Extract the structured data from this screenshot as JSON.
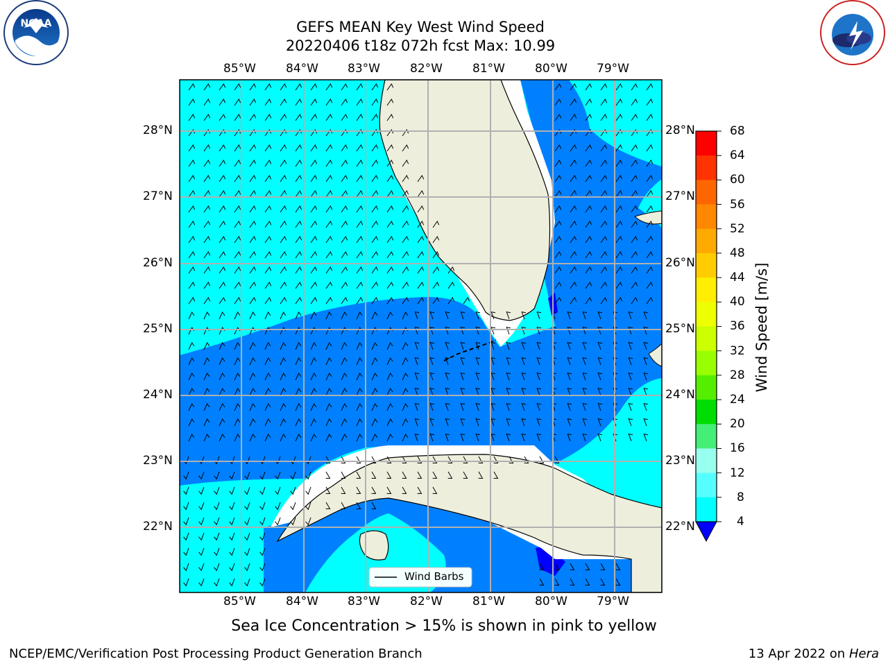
{
  "header": {
    "title_line1": "GEFS MEAN Key West Wind Speed",
    "title_line2": "20220406 t18z 072h fcst   Max: 10.99"
  },
  "logos": {
    "left": "NOAA",
    "right": "NATIONAL WEATHER SERVICE"
  },
  "map": {
    "lon_labels": [
      "85°W",
      "84°W",
      "83°W",
      "82°W",
      "81°W",
      "80°W",
      "79°W"
    ],
    "lat_labels": [
      "28°N",
      "27°N",
      "26°N",
      "25°N",
      "24°N",
      "23°N",
      "22°N"
    ],
    "legend_label": "Wind Barbs",
    "colors": {
      "cyan": "#00ffff",
      "blue": "#0080ff",
      "dark_blue": "#0000ff",
      "land": "#eeeedd",
      "grid": "#b0b0b0"
    }
  },
  "colorbar": {
    "label": "Wind Speed [m/s]",
    "ticks": [
      "68",
      "64",
      "60",
      "56",
      "52",
      "48",
      "44",
      "40",
      "36",
      "32",
      "28",
      "24",
      "20",
      "16",
      "12",
      "8",
      "4"
    ],
    "colors": [
      "#ff0000",
      "#ff3300",
      "#ff6600",
      "#ff8800",
      "#ffaa00",
      "#ffcc00",
      "#ffee00",
      "#eeff00",
      "#ccff00",
      "#99ff00",
      "#55ee00",
      "#00dd00",
      "#44ee77",
      "#99ffee",
      "#55ffff",
      "#00ffff",
      "#0080ff"
    ],
    "extend_color": "#0000ff"
  },
  "caption": "Sea Ice Concentration > 15% is shown in pink to yellow",
  "footer": {
    "left": "NCEP/EMC/Verification Post Processing Product Generation Branch",
    "right_date": "13 Apr 2022 on ",
    "right_host": "Hera"
  }
}
